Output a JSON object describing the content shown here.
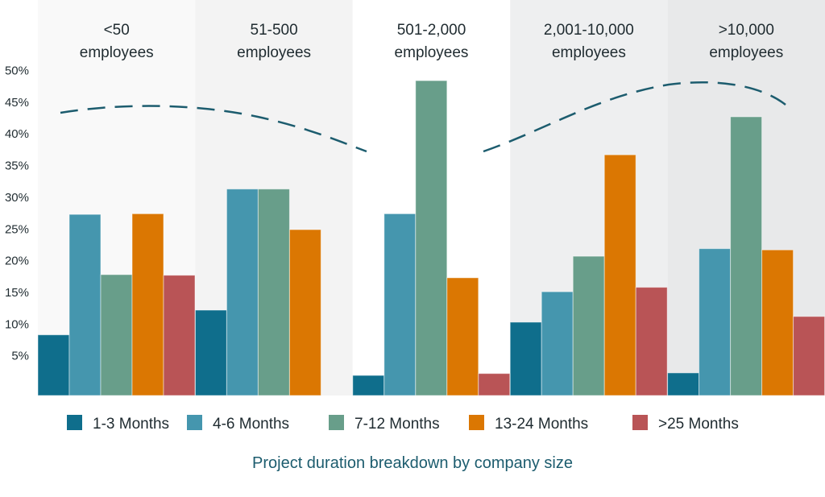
{
  "chart_data": {
    "type": "bar",
    "title": "Project duration breakdown by company size",
    "categories": [
      [
        "<50",
        "employees"
      ],
      [
        "51-500",
        "employees"
      ],
      [
        "501-2,000",
        "employees"
      ],
      [
        "2,001-10,000",
        "employees"
      ],
      [
        ">10,000",
        "employees"
      ]
    ],
    "series": [
      {
        "name": "1-3 Months",
        "color": "#0f6e8c",
        "values": [
          8.3,
          12.2,
          1.9,
          10.3,
          2.3
        ]
      },
      {
        "name": "4-6 Months",
        "color": "#4596ae",
        "values": [
          27.3,
          31.3,
          27.4,
          15.1,
          21.9
        ]
      },
      {
        "name": "7-12 Months",
        "color": "#689e8a",
        "values": [
          17.8,
          31.3,
          48.4,
          20.7,
          42.7
        ]
      },
      {
        "name": "13-24 Months",
        "color": "#db7702",
        "values": [
          27.4,
          24.9,
          17.3,
          36.7,
          21.7
        ]
      },
      {
        "name": ">25 Months",
        "color": "#b95456",
        "values": [
          17.7,
          0,
          2.2,
          15.8,
          11.2
        ]
      }
    ],
    "y_ticks": [
      "5%",
      "10%",
      "15%",
      "20%",
      "25%",
      "30%",
      "35%",
      "40%",
      "45%",
      "50%"
    ],
    "ylim": [
      0,
      50
    ],
    "legend_position": "bottom",
    "grid": false,
    "trend_line": "dashed",
    "trend_color": "#1c5c6e"
  }
}
